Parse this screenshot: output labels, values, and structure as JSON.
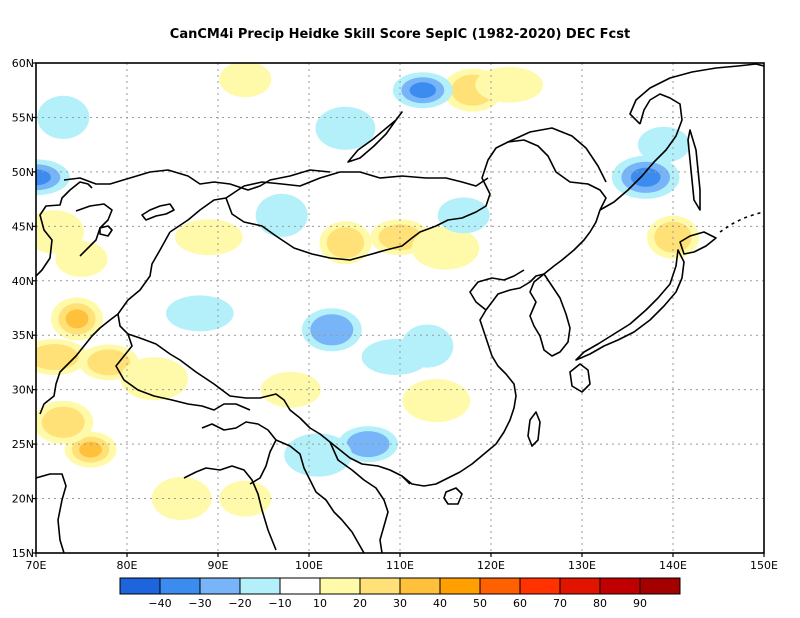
{
  "title": "CanCM4i Precip Heidke Skill Score SepIC (1982-2020) DEC Fcst",
  "map": {
    "lat_labels": [
      "60N",
      "55N",
      "50N",
      "45N",
      "40N",
      "35N",
      "30N",
      "25N",
      "20N",
      "15N"
    ],
    "lon_labels": [
      "70E",
      "80E",
      "90E",
      "100E",
      "110E",
      "120E",
      "130E",
      "140E",
      "150E"
    ],
    "lon_range": [
      70,
      150
    ],
    "lat_range": [
      15,
      60
    ],
    "grid": "dotted",
    "land_outline_color": "#000000",
    "background_color": "#ffffff"
  },
  "colorbar": {
    "colors": [
      "#1e64dc",
      "#3c8cf0",
      "#78b4f8",
      "#b4f0fa",
      "#ffffff",
      "#fffaaa",
      "#ffe178",
      "#ffc03c",
      "#ffa000",
      "#ff6000",
      "#ff3200",
      "#e11400",
      "#c00000",
      "#a50000"
    ],
    "labels": [
      "-40",
      "-30",
      "-20",
      "-10",
      "10",
      "20",
      "30",
      "40",
      "50",
      "60",
      "70",
      "80",
      "90"
    ]
  },
  "chart_data": {
    "type": "heatmap",
    "title": "CanCM4i Precip Heidke Skill Score SepIC (1982-2020) DEC Fcst",
    "x_range": [
      70,
      150
    ],
    "y_range": [
      15,
      60
    ],
    "levels": [
      -40,
      -30,
      -20,
      -10,
      10,
      20,
      30,
      40,
      50,
      60,
      70,
      80,
      90
    ],
    "patches": [
      {
        "lon": 76,
        "lat": 24.5,
        "value": 38
      },
      {
        "lon": 73,
        "lat": 27,
        "value": 22
      },
      {
        "lon": 72,
        "lat": 33,
        "value": 28
      },
      {
        "lon": 74.5,
        "lat": 36.5,
        "value": 32
      },
      {
        "lon": 78,
        "lat": 32.5,
        "value": 22
      },
      {
        "lon": 83,
        "lat": 31,
        "value": 18
      },
      {
        "lon": 75,
        "lat": 42,
        "value": 15
      },
      {
        "lon": 72,
        "lat": 44.5,
        "value": 15
      },
      {
        "lon": 89,
        "lat": 44,
        "value": 15
      },
      {
        "lon": 104,
        "lat": 43.5,
        "value": 22
      },
      {
        "lon": 110,
        "lat": 44,
        "value": 22
      },
      {
        "lon": 115,
        "lat": 43,
        "value": 18
      },
      {
        "lon": 93,
        "lat": 58.5,
        "value": 18
      },
      {
        "lon": 118,
        "lat": 57.5,
        "value": 22
      },
      {
        "lon": 122,
        "lat": 58,
        "value": 18
      },
      {
        "lon": 140,
        "lat": 44,
        "value": 20
      },
      {
        "lon": 98,
        "lat": 30,
        "value": 15
      },
      {
        "lon": 114,
        "lat": 29,
        "value": 15
      },
      {
        "lon": 93,
        "lat": 20,
        "value": 18
      },
      {
        "lon": 86,
        "lat": 20,
        "value": 15
      },
      {
        "lon": 70,
        "lat": 49.5,
        "value": -32
      },
      {
        "lon": 73,
        "lat": 55,
        "value": -15
      },
      {
        "lon": 112.5,
        "lat": 57.5,
        "value": -30
      },
      {
        "lon": 137,
        "lat": 49.5,
        "value": -30
      },
      {
        "lon": 139,
        "lat": 52.5,
        "value": -18
      },
      {
        "lon": 102.5,
        "lat": 35.5,
        "value": -25
      },
      {
        "lon": 109.5,
        "lat": 33,
        "value": -15
      },
      {
        "lon": 113,
        "lat": 34,
        "value": -15
      },
      {
        "lon": 106.5,
        "lat": 25,
        "value": -25
      },
      {
        "lon": 101,
        "lat": 24,
        "value": -15
      },
      {
        "lon": 117,
        "lat": 46,
        "value": -15
      },
      {
        "lon": 104,
        "lat": 54,
        "value": -15
      },
      {
        "lon": 88,
        "lat": 37,
        "value": -12
      },
      {
        "lon": 97,
        "lat": 46,
        "value": -12
      }
    ]
  }
}
